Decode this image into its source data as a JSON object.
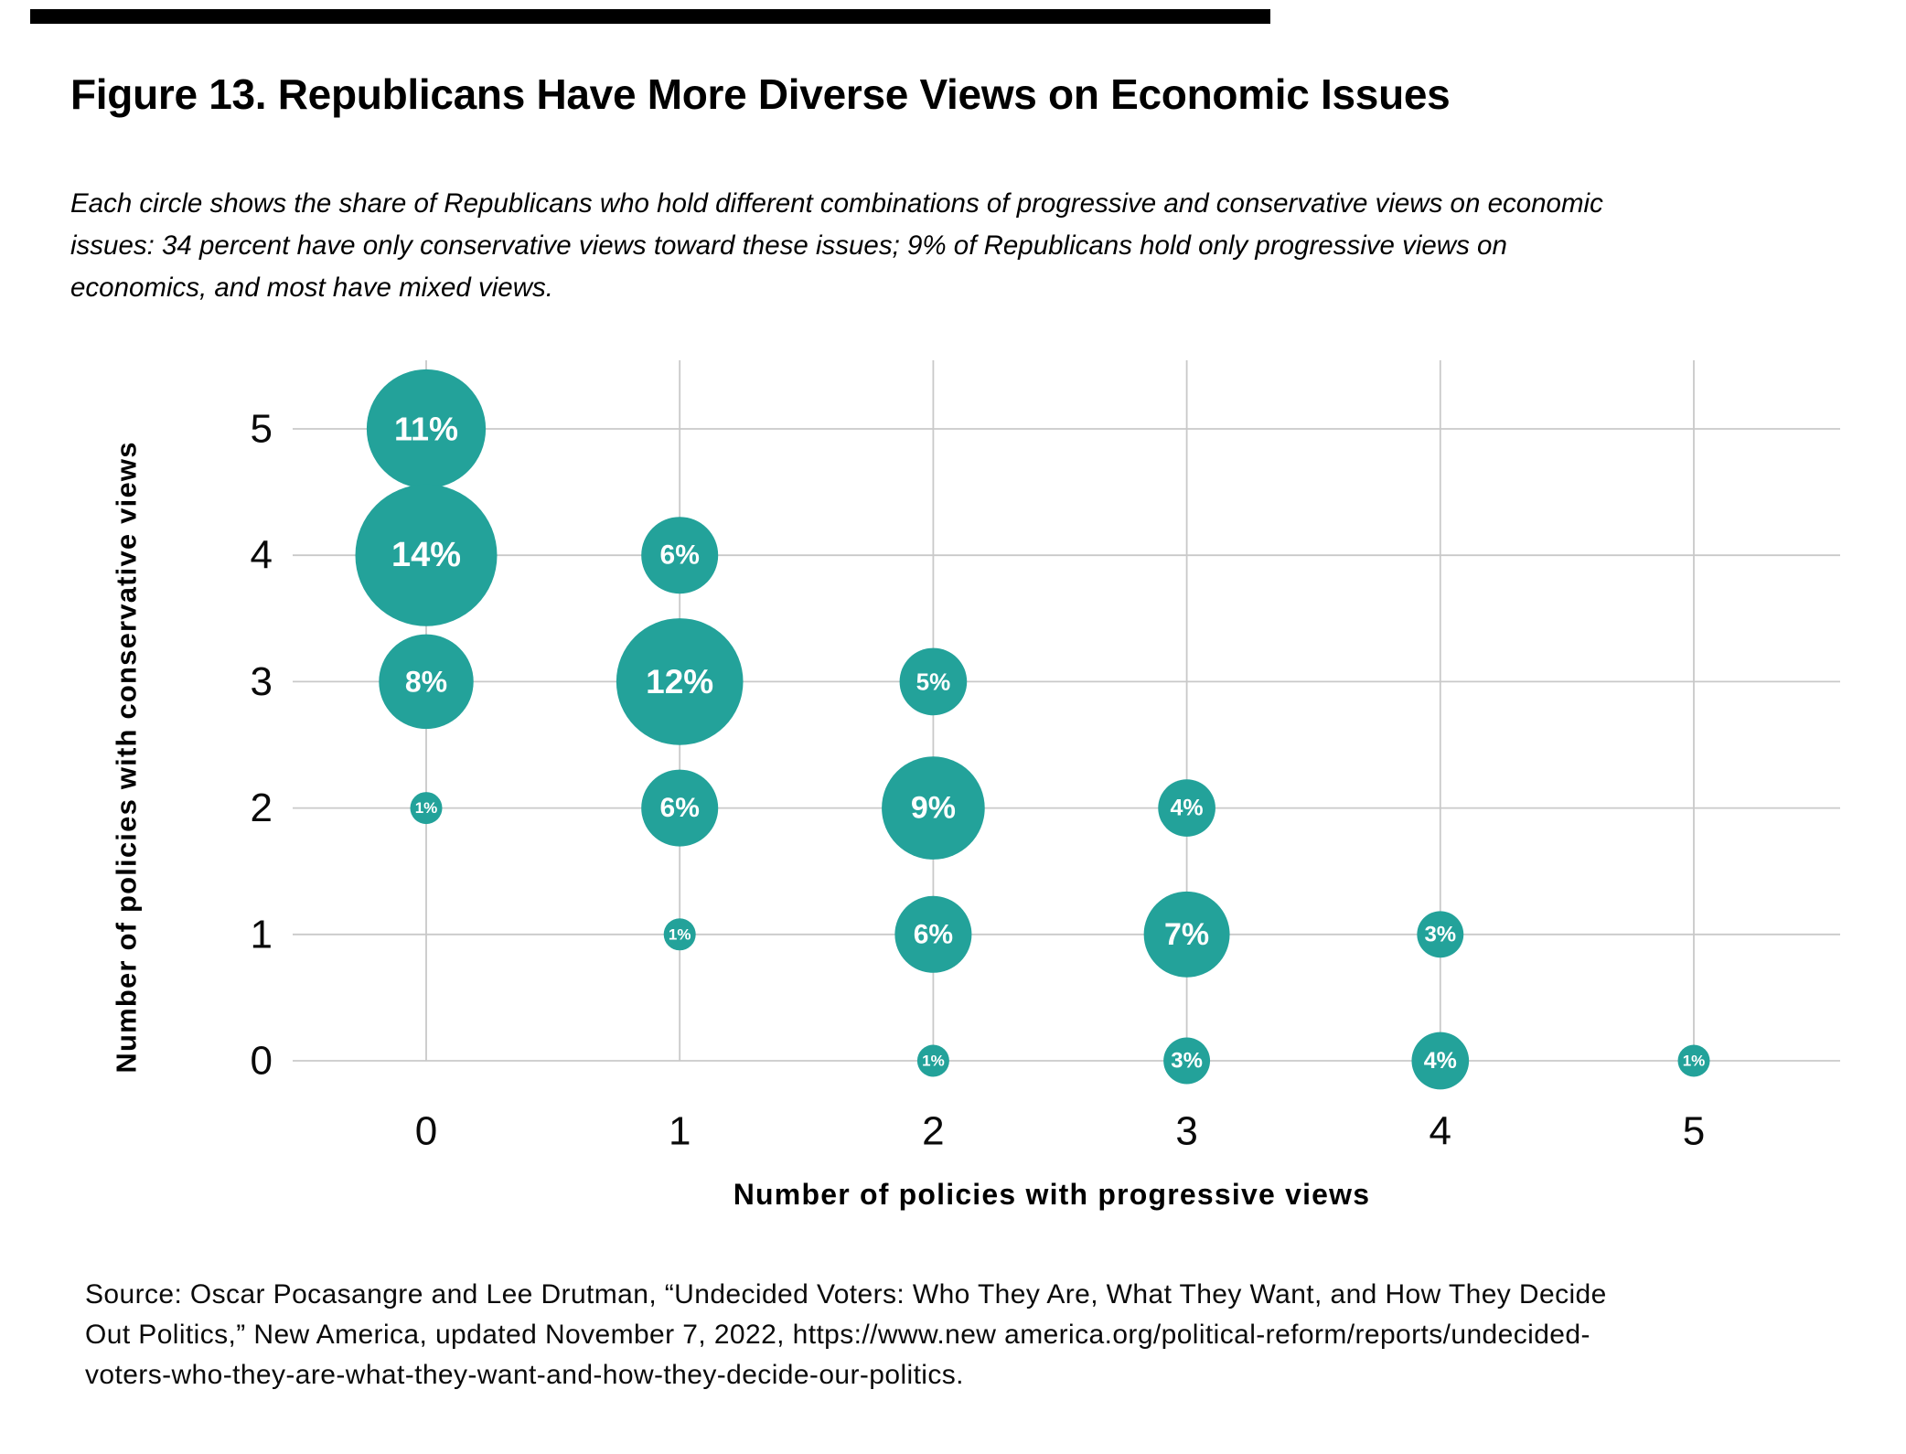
{
  "figure": {
    "title": "Figure 13. Republicans Have More Diverse Views on Economic Issues",
    "subtitle_lines": [
      "Each circle shows the share of Republicans who hold different combinations of progressive and conservative views on economic",
      "issues: 34 percent have only conservative views toward these issues; 9% of Republicans hold only progressive views on",
      "economics, and most have mixed views."
    ],
    "source_lines": [
      "Source: Oscar Pocasangre and Lee Drutman, “Undecided Voters: Who They Are, What They Want, and How They Decide",
      "Out Politics,” New America, updated November 7, 2022, https://www.new america.org/political-reform/reports/undecided-",
      "voters-who-they-are-what-they-want-and-how-they-decide-our-politics."
    ],
    "top_bar_color": "#000000"
  },
  "chart_data": {
    "type": "scatter",
    "subtype": "bubble",
    "title": "",
    "xlabel": "Number of policies with progressive views",
    "ylabel": "Number of policies with conservative views",
    "x_ticks": [
      0,
      1,
      2,
      3,
      4,
      5
    ],
    "y_ticks": [
      0,
      1,
      2,
      3,
      4,
      5
    ],
    "xlim": [
      -0.55,
      5.6
    ],
    "ylim": [
      0,
      5.55
    ],
    "grid": true,
    "legend": false,
    "bubble_color": "#23A29A",
    "bubble_label_color": "#FFFFFF",
    "gridline_color": "#C9C9C9",
    "tick_color": "#0a0a0a",
    "axis_title_color": "#000000",
    "points": [
      {
        "x": 0,
        "y": 5,
        "value": 11,
        "label": "11%"
      },
      {
        "x": 0,
        "y": 4,
        "value": 14,
        "label": "14%"
      },
      {
        "x": 1,
        "y": 4,
        "value": 6,
        "label": "6%"
      },
      {
        "x": 0,
        "y": 3,
        "value": 8,
        "label": "8%"
      },
      {
        "x": 1,
        "y": 3,
        "value": 12,
        "label": "12%"
      },
      {
        "x": 2,
        "y": 3,
        "value": 5,
        "label": "5%"
      },
      {
        "x": 0,
        "y": 2,
        "value": 1,
        "label": "1%"
      },
      {
        "x": 1,
        "y": 2,
        "value": 6,
        "label": "6%"
      },
      {
        "x": 2,
        "y": 2,
        "value": 9,
        "label": "9%"
      },
      {
        "x": 3,
        "y": 2,
        "value": 4,
        "label": "4%"
      },
      {
        "x": 1,
        "y": 1,
        "value": 1,
        "label": "1%"
      },
      {
        "x": 2,
        "y": 1,
        "value": 6,
        "label": "6%"
      },
      {
        "x": 3,
        "y": 1,
        "value": 7,
        "label": "7%"
      },
      {
        "x": 4,
        "y": 1,
        "value": 3,
        "label": "3%"
      },
      {
        "x": 2,
        "y": 0,
        "value": 1,
        "label": "1%"
      },
      {
        "x": 3,
        "y": 0,
        "value": 3,
        "label": "3%"
      },
      {
        "x": 4,
        "y": 0,
        "value": 4,
        "label": "4%"
      },
      {
        "x": 5,
        "y": 0,
        "value": 1,
        "label": "1%"
      }
    ]
  }
}
